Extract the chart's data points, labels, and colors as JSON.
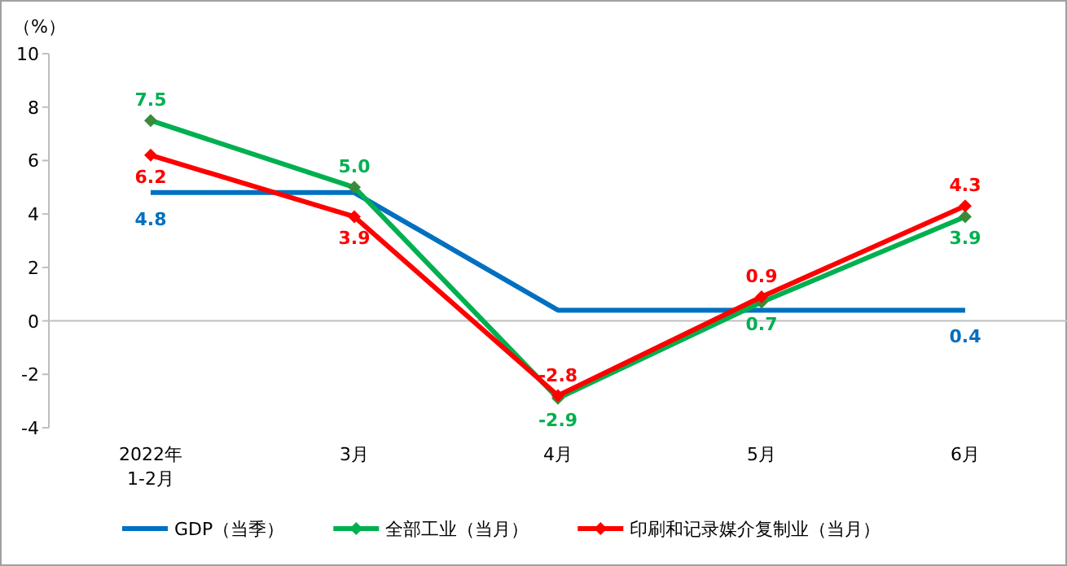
{
  "chart_data": {
    "type": "line",
    "ylabel": "（%）",
    "categories": [
      "2022年\n1-2月",
      "3月",
      "4月",
      "5月",
      "6月"
    ],
    "ylim": [
      -4,
      10
    ],
    "yticks": [
      -4,
      -2,
      0,
      2,
      4,
      6,
      8,
      10
    ],
    "grid": false,
    "legend": "bottom",
    "ref_lines": [
      {
        "axis": "y",
        "value": 0,
        "color": "#bfbfbf"
      }
    ],
    "series": [
      {
        "name": "GDP（当季）",
        "color": "#0070c0",
        "marker": "none",
        "values": [
          4.8,
          4.8,
          0.4,
          0.4,
          0.4
        ],
        "value_labels": [
          "4.8",
          null,
          null,
          null,
          "0.4"
        ]
      },
      {
        "name": "全部工业（当月）",
        "color": "#00b050",
        "marker": "diamond",
        "values": [
          7.5,
          5.0,
          -2.9,
          0.7,
          3.9
        ],
        "value_labels": [
          "7.5",
          "5.0",
          "-2.9",
          "0.7",
          "3.9"
        ]
      },
      {
        "name": "印刷和记录媒介复制业（当月）",
        "color": "#ff0000",
        "marker": "diamond",
        "values": [
          6.2,
          3.9,
          -2.8,
          0.9,
          4.3
        ],
        "value_labels": [
          "6.2",
          "3.9",
          "-2.8",
          "0.9",
          "4.3"
        ]
      }
    ]
  }
}
